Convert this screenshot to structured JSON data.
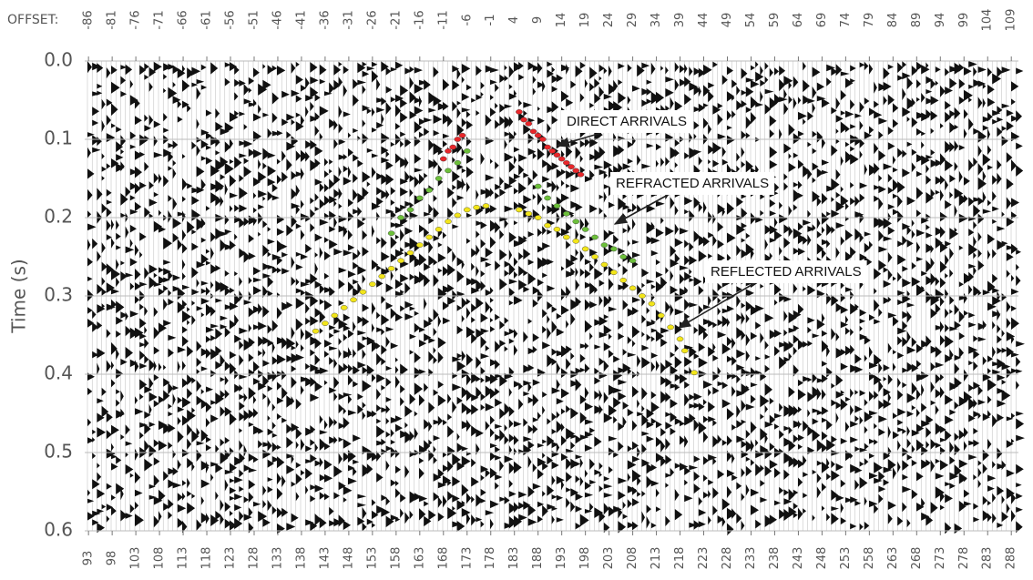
{
  "chart_data": {
    "type": "scatter",
    "y_label": "Time (s)",
    "x2_label": "OFFSET:",
    "xlim": [
      92.2,
      289.5
    ],
    "xticks": [
      93,
      98,
      103,
      108,
      113,
      118,
      123,
      128,
      133,
      138,
      143,
      148,
      153,
      158,
      163,
      168,
      173,
      178,
      183,
      188,
      193,
      198,
      203,
      208,
      213,
      218,
      223,
      228,
      233,
      238,
      243,
      248,
      253,
      258,
      263,
      268,
      273,
      278,
      283,
      288
    ],
    "x2lim": [
      -86.8,
      110.5
    ],
    "x2ticks": [
      -86,
      -81,
      -76,
      -71,
      -66,
      -61,
      -56,
      -51,
      -46,
      -41,
      -36,
      -31,
      -26,
      -21,
      -16,
      -11,
      -6,
      -1,
      4,
      9,
      14,
      19,
      24,
      29,
      34,
      39,
      44,
      49,
      54,
      59,
      64,
      69,
      74,
      79,
      84,
      89,
      94,
      99,
      104,
      109
    ],
    "ylim": [
      0,
      0.6
    ],
    "yticks": [
      {
        "value": 0,
        "label": "0.0"
      },
      0.1,
      0.2,
      0.3,
      0.4,
      0.5,
      0.6
    ],
    "y_inverted": true,
    "grid": true,
    "series": [
      {
        "name": "DIRECT ARRIVALS",
        "color": "#e8262a",
        "x": [
          168,
          169,
          170,
          171,
          172,
          184,
          185,
          186,
          187,
          188,
          189,
          190,
          191,
          192,
          193,
          194,
          195,
          196,
          197
        ],
        "values": [
          0.125,
          0.115,
          0.11,
          0.1,
          0.095,
          0.065,
          0.075,
          0.08,
          0.09,
          0.095,
          0.1,
          0.11,
          0.115,
          0.12,
          0.125,
          0.13,
          0.135,
          0.14,
          0.145
        ]
      },
      {
        "name": "REFRACTED ARRIVALS",
        "color": "#6cbf3a",
        "x": [
          157,
          159,
          161,
          163,
          165,
          167,
          169,
          171,
          173,
          188,
          190,
          192,
          194,
          196,
          198,
          200,
          202,
          204,
          206,
          208
        ],
        "values": [
          0.22,
          0.2,
          0.19,
          0.175,
          0.165,
          0.15,
          0.14,
          0.13,
          0.115,
          0.16,
          0.175,
          0.185,
          0.195,
          0.205,
          0.215,
          0.225,
          0.235,
          0.24,
          0.25,
          0.255
        ]
      },
      {
        "name": "REFLECTED ARRIVALS",
        "color": "#f2e51a",
        "x": [
          141,
          143,
          145,
          147,
          149,
          151,
          153,
          155,
          157,
          159,
          161,
          163,
          165,
          167,
          169,
          171,
          173,
          175,
          177,
          184,
          186,
          188,
          190,
          192,
          194,
          196,
          198,
          200,
          202,
          204,
          206,
          208,
          210,
          212,
          214,
          216,
          218,
          219,
          221
        ],
        "values": [
          0.345,
          0.335,
          0.325,
          0.315,
          0.305,
          0.295,
          0.285,
          0.275,
          0.265,
          0.255,
          0.245,
          0.235,
          0.225,
          0.215,
          0.205,
          0.197,
          0.19,
          0.187,
          0.185,
          0.19,
          0.195,
          0.2,
          0.21,
          0.215,
          0.225,
          0.23,
          0.24,
          0.25,
          0.26,
          0.27,
          0.28,
          0.29,
          0.3,
          0.31,
          0.325,
          0.34,
          0.355,
          0.37,
          0.398
        ]
      }
    ]
  }
}
